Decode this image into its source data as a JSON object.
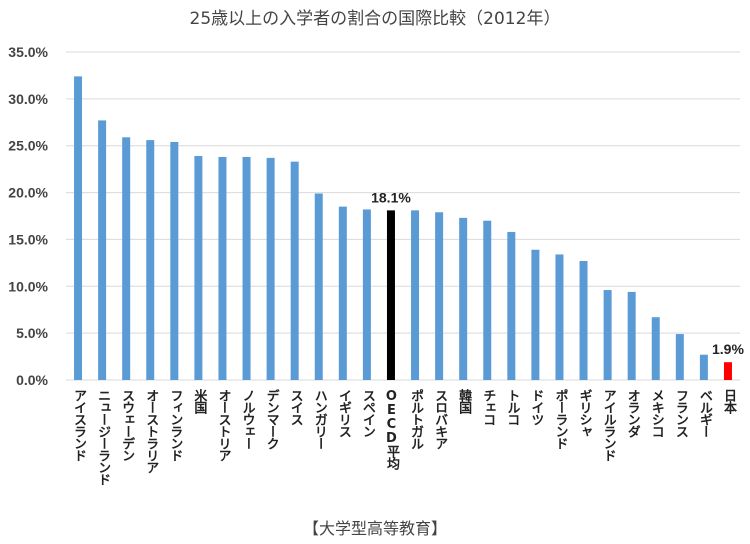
{
  "chart_data": {
    "type": "bar",
    "title": "25歳以上の入学者の割合の国際比較（2012年）",
    "xlabel": "【大学型高等教育】",
    "ylabel": "",
    "ylim": [
      0,
      35
    ],
    "yticks": [
      "0.0%",
      "5.0%",
      "10.0%",
      "15.0%",
      "20.0%",
      "25.0%",
      "30.0%",
      "35.0%"
    ],
    "grid": true,
    "categories": [
      "アイスランド",
      "ニュージーランド",
      "スウェーデン",
      "オーストラリア",
      "フィンランド",
      "米国",
      "オーストリア",
      "ノルウェー",
      "デンマーク",
      "スイス",
      "ハンガリー",
      "イギリス",
      "スペイン",
      "OECD平均",
      "ポルトガル",
      "スロバキア",
      "韓国",
      "チェコ",
      "トルコ",
      "ドイツ",
      "ポーランド",
      "ギリシャ",
      "アイルランド",
      "オランダ",
      "メキシコ",
      "フランス",
      "ベルギー",
      "日本"
    ],
    "values": [
      32.4,
      27.7,
      25.9,
      25.6,
      25.4,
      23.9,
      23.8,
      23.8,
      23.7,
      23.3,
      19.9,
      18.5,
      18.2,
      18.1,
      18.1,
      17.9,
      17.3,
      17.0,
      15.8,
      13.9,
      13.4,
      12.7,
      9.6,
      9.4,
      6.7,
      4.9,
      2.7,
      1.9
    ],
    "data_labels": {
      "OECD平均": "18.1%",
      "日本": "1.9%"
    },
    "colors": {
      "default": "#5b9bd5",
      "OECD平均": "#000000",
      "日本": "#ff0000",
      "grid": "#d9d9d9"
    }
  }
}
